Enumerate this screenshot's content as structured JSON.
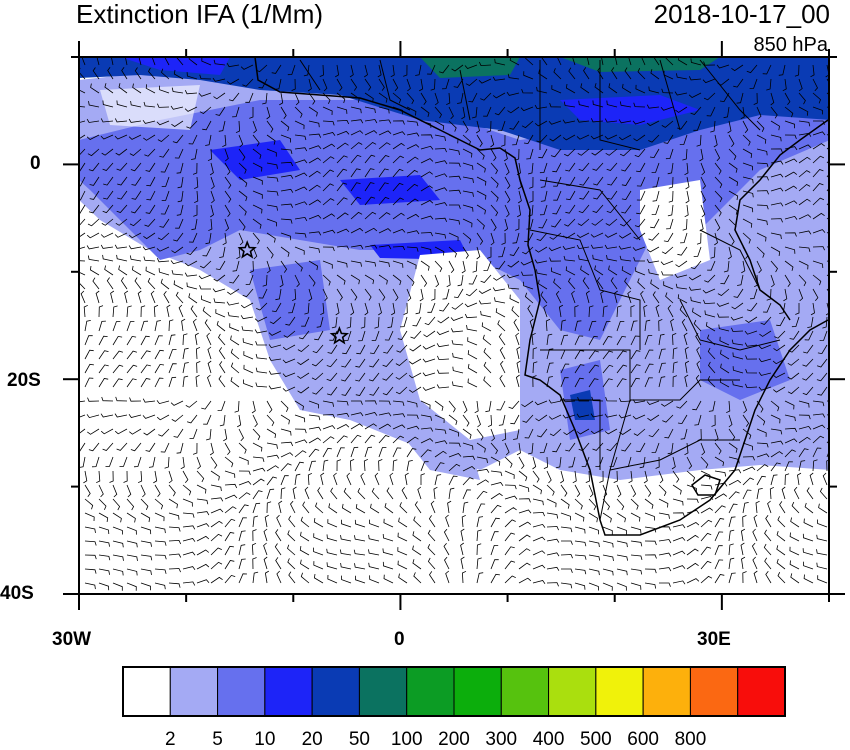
{
  "title": "Extinction IFA (1/Mm)",
  "datetime": "2018-10-17_00",
  "level": "850 hPa",
  "axes": {
    "lat_labels": [
      "0",
      "20S",
      "40S"
    ],
    "lon_labels": [
      "30W",
      "0",
      "30E"
    ],
    "lat_range": [
      -40,
      10
    ],
    "lon_range": [
      -30,
      40
    ]
  },
  "colorbar": {
    "levels": [
      "2",
      "5",
      "10",
      "20",
      "50",
      "100",
      "200",
      "300",
      "400",
      "500",
      "600",
      "800"
    ],
    "colors": [
      "#ffffff",
      "#a4aaf4",
      "#6670ee",
      "#1d24f8",
      "#0a3bb4",
      "#0b7260",
      "#0c9c24",
      "#0cae0c",
      "#56c20e",
      "#aadf0e",
      "#f0f20a",
      "#fdb00c",
      "#fb6812",
      "#f80d0b"
    ]
  },
  "markers": [
    {
      "name": "star-1",
      "lon": -14.3,
      "lat": -8
    },
    {
      "name": "star-2",
      "lon": -5.7,
      "lat": -16
    }
  ]
}
